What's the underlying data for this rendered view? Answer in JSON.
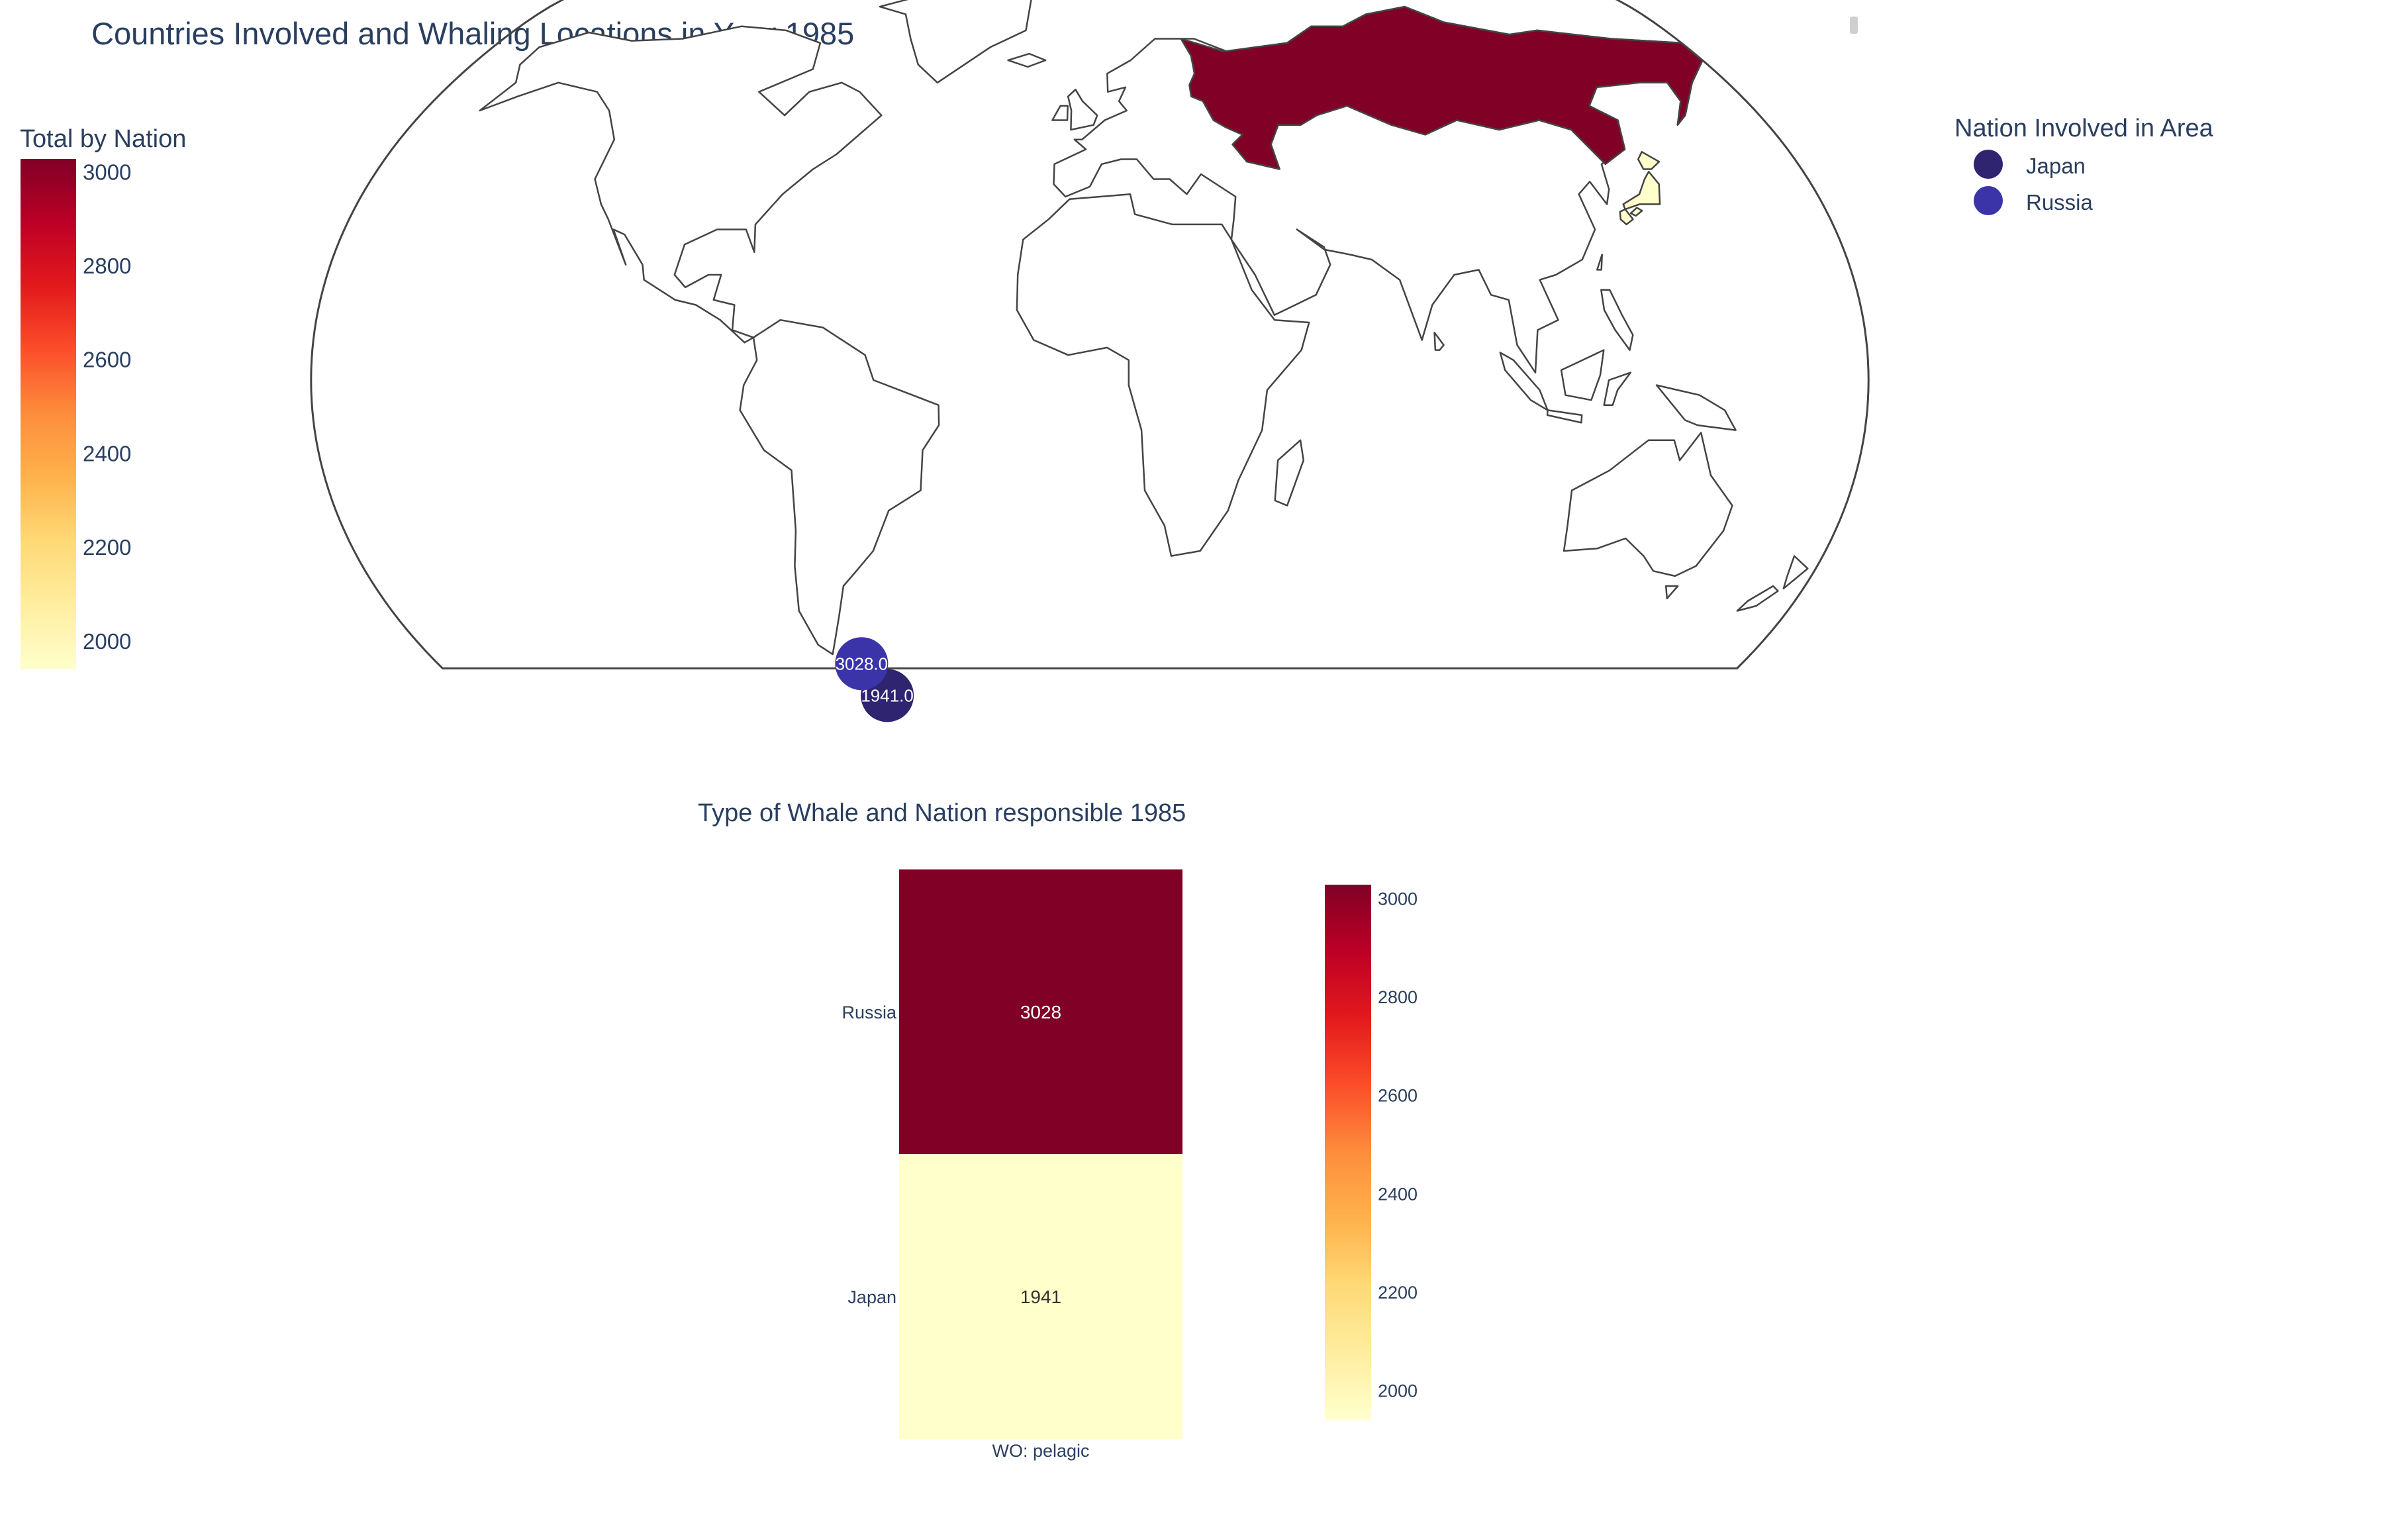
{
  "title": "Countries Involved and Whaling Locations in Year 1985",
  "colors": {
    "scale": [
      "#ffffcc",
      "#ffeda0",
      "#fed976",
      "#feb24c",
      "#fd8d3c",
      "#fc4e2a",
      "#e31a1c",
      "#bd0026",
      "#800026"
    ],
    "japan_marker": "#2e2470",
    "russia_marker": "#3a34a8",
    "text": "#2a3f5f",
    "coastline": "#444444"
  },
  "chart_data": [
    {
      "type": "choropleth",
      "projection": "natural earth",
      "colorbar": {
        "title": "Total by Nation",
        "range": [
          1941,
          3028
        ],
        "ticks": [
          3000,
          2800,
          2600,
          2400,
          2200,
          2000
        ]
      },
      "regions": [
        {
          "name": "Russia",
          "value": 3028
        },
        {
          "name": "Japan",
          "value": 1941
        }
      ],
      "markers": [
        {
          "name": "Russia",
          "label": "3028.0",
          "value": 3028,
          "lon": -63,
          "lat": -57
        },
        {
          "name": "Japan",
          "label": "1941.0",
          "value": 1941,
          "lon": -59,
          "lat": -64
        }
      ],
      "legend": {
        "title": "Nation Involved in Area",
        "position": "top-right",
        "items": [
          {
            "name": "Japan",
            "icon": "circle-marker"
          },
          {
            "name": "Russia",
            "icon": "circle-marker"
          }
        ]
      }
    },
    {
      "type": "heatmap",
      "title": "Type of Whale and Nation responsible 1985",
      "x": [
        "WO: pelagic"
      ],
      "y": [
        "Japan",
        "Russia"
      ],
      "z": [
        [
          1941
        ],
        [
          3028
        ]
      ],
      "cell_labels": [
        "1941",
        "3028"
      ],
      "colorbar": {
        "range": [
          1941,
          3028
        ],
        "ticks": [
          3000,
          2800,
          2600,
          2400,
          2200,
          2000
        ]
      }
    }
  ]
}
